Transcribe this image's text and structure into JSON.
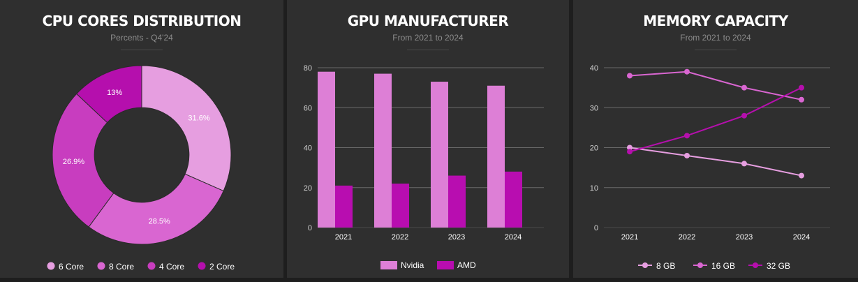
{
  "colors": {
    "background": "#2f2f2f",
    "grid": "#6a6a6a",
    "text": "#ffffff",
    "muted": "#8c8c8c",
    "six_core": "#e69ee0",
    "eight_core": "#d966d1",
    "four_core": "#c83dbf",
    "two_core": "#b50fad",
    "nvidia": "#dd7fd6",
    "amd": "#b80db0"
  },
  "panels": [
    {
      "title": "CPU CORES DISTRIBUTION",
      "subtitle": "Percents - Q4'24"
    },
    {
      "title": "GPU MANUFACTURER",
      "subtitle": "From 2021 to 2024"
    },
    {
      "title": "MEMORY CAPACITY",
      "subtitle": "From 2021 to 2024"
    }
  ],
  "chart_data": [
    {
      "type": "pie",
      "hole": 0.53,
      "title": "CPU CORES DISTRIBUTION",
      "subtitle": "Percents - Q4'24",
      "categories": [
        "6 Core",
        "8 Core",
        "4 Core",
        "2 Core"
      ],
      "values": [
        31.6,
        28.5,
        26.9,
        13
      ],
      "labels": [
        "31.6%",
        "28.5%",
        "26.9%",
        "13%"
      ],
      "legend": "bottom"
    },
    {
      "type": "bar",
      "title": "GPU MANUFACTURER",
      "subtitle": "From 2021 to 2024",
      "categories": [
        "2021",
        "2022",
        "2023",
        "2024"
      ],
      "series": [
        {
          "name": "Nvidia",
          "values": [
            78,
            77,
            73,
            71
          ]
        },
        {
          "name": "AMD",
          "values": [
            21,
            22,
            26,
            28
          ]
        }
      ],
      "ylim": [
        0,
        80
      ],
      "yticks": [
        "0",
        "20",
        "40",
        "60",
        "80"
      ],
      "grid": true,
      "legend": "bottom"
    },
    {
      "type": "line",
      "title": "MEMORY CAPACITY",
      "subtitle": "From 2021 to 2024",
      "categories": [
        "2021",
        "2022",
        "2023",
        "2024"
      ],
      "series": [
        {
          "name": "8 GB",
          "values": [
            20,
            18,
            16,
            13
          ]
        },
        {
          "name": "16 GB",
          "values": [
            38,
            39,
            35,
            32
          ]
        },
        {
          "name": "32 GB",
          "values": [
            19,
            23,
            28,
            35
          ]
        }
      ],
      "ylim": [
        0,
        40
      ],
      "yticks": [
        "0",
        "10",
        "20",
        "30",
        "40"
      ],
      "grid": true,
      "legend": "bottom"
    }
  ]
}
